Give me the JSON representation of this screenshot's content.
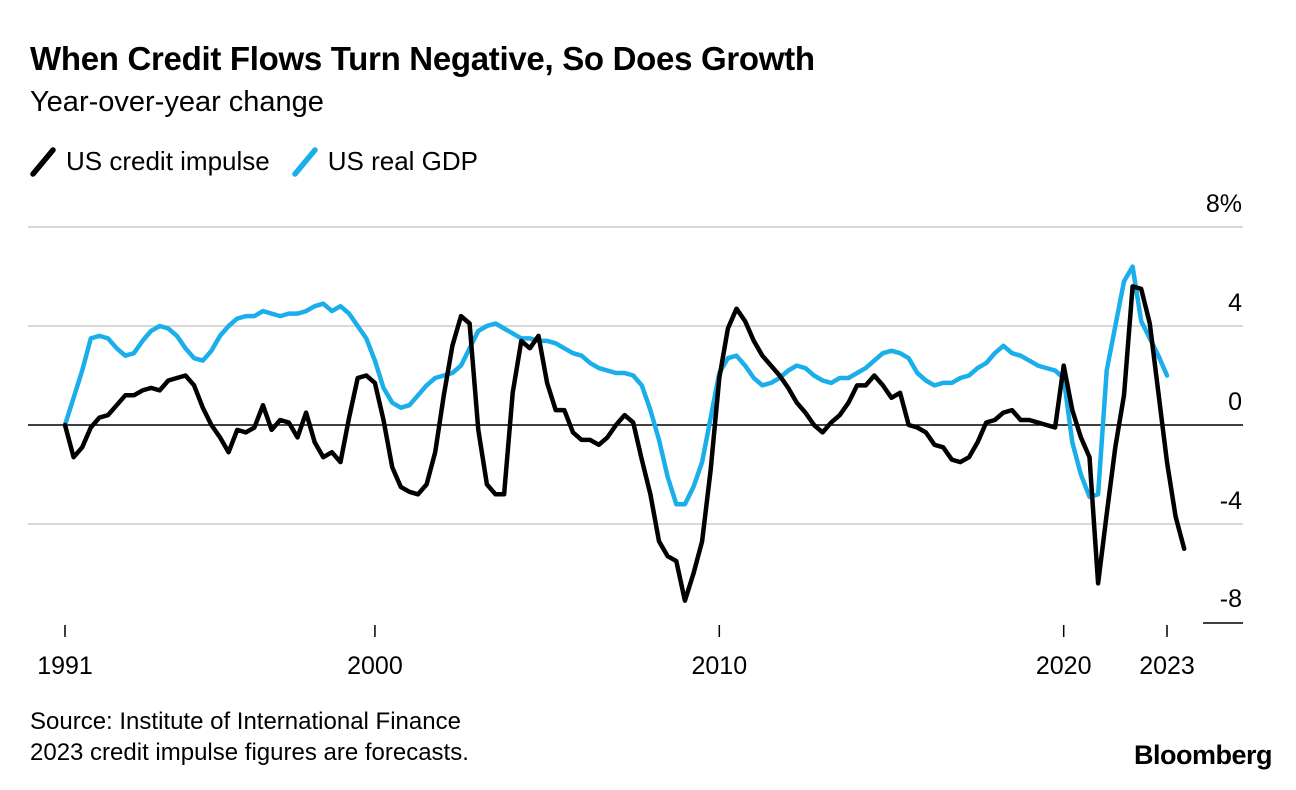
{
  "header": {
    "title": "When Credit Flows Turn Negative, So Does Growth",
    "subtitle": "Year-over-year change"
  },
  "legend": [
    {
      "label": "US credit impulse",
      "color": "#000000"
    },
    {
      "label": "US real GDP",
      "color": "#1aaeeb"
    }
  ],
  "footer": {
    "source": "Source: Institute of International Finance",
    "note": "2023 credit impulse figures are forecasts.",
    "brand": "Bloomberg"
  },
  "chart_data": {
    "type": "line",
    "xlim": [
      1991,
      2023
    ],
    "ylim": [
      -8,
      8
    ],
    "x_ticks": [
      {
        "value": 1991,
        "label": "1991"
      },
      {
        "value": 2000,
        "label": "2000"
      },
      {
        "value": 2010,
        "label": "2010"
      },
      {
        "value": 2020,
        "label": "2020"
      },
      {
        "value": 2023,
        "label": "2023"
      }
    ],
    "y_ticks": [
      {
        "value": 8,
        "label": "8%"
      },
      {
        "value": 4,
        "label": "4"
      },
      {
        "value": 0,
        "label": "0"
      },
      {
        "value": -4,
        "label": "-4"
      },
      {
        "value": -8,
        "label": "-8"
      }
    ],
    "grid": true,
    "legend_position": "top-left",
    "series": [
      {
        "name": "US credit impulse",
        "color": "#000000",
        "points": [
          [
            1991.0,
            0.0
          ],
          [
            1991.25,
            -1.3
          ],
          [
            1991.5,
            -0.9
          ],
          [
            1991.75,
            -0.1
          ],
          [
            1992.0,
            0.3
          ],
          [
            1992.25,
            0.4
          ],
          [
            1992.5,
            0.8
          ],
          [
            1992.75,
            1.2
          ],
          [
            1993.0,
            1.2
          ],
          [
            1993.25,
            1.4
          ],
          [
            1993.5,
            1.5
          ],
          [
            1993.75,
            1.4
          ],
          [
            1994.0,
            1.8
          ],
          [
            1994.25,
            1.9
          ],
          [
            1994.5,
            2.0
          ],
          [
            1994.75,
            1.6
          ],
          [
            1995.0,
            0.7
          ],
          [
            1995.25,
            0.0
          ],
          [
            1995.5,
            -0.5
          ],
          [
            1995.75,
            -1.1
          ],
          [
            1996.0,
            -0.2
          ],
          [
            1996.25,
            -0.3
          ],
          [
            1996.5,
            -0.1
          ],
          [
            1996.75,
            0.8
          ],
          [
            1997.0,
            -0.2
          ],
          [
            1997.25,
            0.2
          ],
          [
            1997.5,
            0.1
          ],
          [
            1997.75,
            -0.5
          ],
          [
            1998.0,
            0.5
          ],
          [
            1998.25,
            -0.7
          ],
          [
            1998.5,
            -1.3
          ],
          [
            1998.75,
            -1.1
          ],
          [
            1999.0,
            -1.5
          ],
          [
            1999.25,
            0.3
          ],
          [
            1999.5,
            1.9
          ],
          [
            1999.75,
            2.0
          ],
          [
            2000.0,
            1.7
          ],
          [
            2000.25,
            0.2
          ],
          [
            2000.5,
            -1.7
          ],
          [
            2000.75,
            -2.5
          ],
          [
            2001.0,
            -2.7
          ],
          [
            2001.25,
            -2.8
          ],
          [
            2001.5,
            -2.4
          ],
          [
            2001.75,
            -1.1
          ],
          [
            2002.0,
            1.2
          ],
          [
            2002.25,
            3.2
          ],
          [
            2002.5,
            4.4
          ],
          [
            2002.75,
            4.1
          ],
          [
            2003.0,
            -0.2
          ],
          [
            2003.25,
            -2.4
          ],
          [
            2003.5,
            -2.8
          ],
          [
            2003.75,
            -2.8
          ],
          [
            2004.0,
            1.3
          ],
          [
            2004.25,
            3.4
          ],
          [
            2004.5,
            3.1
          ],
          [
            2004.75,
            3.6
          ],
          [
            2005.0,
            1.7
          ],
          [
            2005.25,
            0.6
          ],
          [
            2005.5,
            0.6
          ],
          [
            2005.75,
            -0.3
          ],
          [
            2006.0,
            -0.6
          ],
          [
            2006.25,
            -0.6
          ],
          [
            2006.5,
            -0.8
          ],
          [
            2006.75,
            -0.5
          ],
          [
            2007.0,
            0.0
          ],
          [
            2007.25,
            0.4
          ],
          [
            2007.5,
            0.1
          ],
          [
            2007.75,
            -1.4
          ],
          [
            2008.0,
            -2.8
          ],
          [
            2008.25,
            -4.7
          ],
          [
            2008.5,
            -5.3
          ],
          [
            2008.75,
            -5.5
          ],
          [
            2009.0,
            -7.1
          ],
          [
            2009.25,
            -6.0
          ],
          [
            2009.5,
            -4.7
          ],
          [
            2009.75,
            -1.8
          ],
          [
            2010.0,
            1.9
          ],
          [
            2010.25,
            3.9
          ],
          [
            2010.5,
            4.7
          ],
          [
            2010.75,
            4.2
          ],
          [
            2011.0,
            3.4
          ],
          [
            2011.25,
            2.8
          ],
          [
            2011.5,
            2.4
          ],
          [
            2011.75,
            2.0
          ],
          [
            2012.0,
            1.5
          ],
          [
            2012.25,
            0.9
          ],
          [
            2012.5,
            0.5
          ],
          [
            2012.75,
            0.0
          ],
          [
            2013.0,
            -0.3
          ],
          [
            2013.25,
            0.1
          ],
          [
            2013.5,
            0.4
          ],
          [
            2013.75,
            0.9
          ],
          [
            2014.0,
            1.6
          ],
          [
            2014.25,
            1.6
          ],
          [
            2014.5,
            2.0
          ],
          [
            2014.75,
            1.6
          ],
          [
            2015.0,
            1.1
          ],
          [
            2015.25,
            1.3
          ],
          [
            2015.5,
            0.0
          ],
          [
            2015.75,
            -0.1
          ],
          [
            2016.0,
            -0.3
          ],
          [
            2016.25,
            -0.8
          ],
          [
            2016.5,
            -0.9
          ],
          [
            2016.75,
            -1.4
          ],
          [
            2017.0,
            -1.5
          ],
          [
            2017.25,
            -1.3
          ],
          [
            2017.5,
            -0.7
          ],
          [
            2017.75,
            0.1
          ],
          [
            2018.0,
            0.2
          ],
          [
            2018.25,
            0.5
          ],
          [
            2018.5,
            0.6
          ],
          [
            2018.75,
            0.2
          ],
          [
            2019.0,
            0.2
          ],
          [
            2019.25,
            0.1
          ],
          [
            2019.5,
            0.0
          ],
          [
            2019.75,
            -0.1
          ],
          [
            2020.0,
            2.4
          ],
          [
            2020.25,
            0.6
          ],
          [
            2020.5,
            -0.5
          ],
          [
            2020.75,
            -1.3
          ],
          [
            2021.0,
            -6.4
          ],
          [
            2021.25,
            -3.6
          ],
          [
            2021.5,
            -0.9
          ],
          [
            2021.75,
            1.2
          ],
          [
            2022.0,
            5.6
          ],
          [
            2022.25,
            5.5
          ],
          [
            2022.5,
            4.1
          ],
          [
            2022.75,
            1.3
          ],
          [
            2023.0,
            -1.5
          ],
          [
            2023.25,
            -3.7
          ],
          [
            2023.5,
            -5.0
          ]
        ]
      },
      {
        "name": "US real GDP",
        "color": "#1aaeeb",
        "points": [
          [
            1991.0,
            0.0
          ],
          [
            1991.25,
            1.1
          ],
          [
            1991.5,
            2.2
          ],
          [
            1991.75,
            3.5
          ],
          [
            1992.0,
            3.6
          ],
          [
            1992.25,
            3.5
          ],
          [
            1992.5,
            3.1
          ],
          [
            1992.75,
            2.8
          ],
          [
            1993.0,
            2.9
          ],
          [
            1993.25,
            3.4
          ],
          [
            1993.5,
            3.8
          ],
          [
            1993.75,
            4.0
          ],
          [
            1994.0,
            3.9
          ],
          [
            1994.25,
            3.6
          ],
          [
            1994.5,
            3.1
          ],
          [
            1994.75,
            2.7
          ],
          [
            1995.0,
            2.6
          ],
          [
            1995.25,
            3.0
          ],
          [
            1995.5,
            3.6
          ],
          [
            1995.75,
            4.0
          ],
          [
            1996.0,
            4.3
          ],
          [
            1996.25,
            4.4
          ],
          [
            1996.5,
            4.4
          ],
          [
            1996.75,
            4.6
          ],
          [
            1997.0,
            4.5
          ],
          [
            1997.25,
            4.4
          ],
          [
            1997.5,
            4.5
          ],
          [
            1997.75,
            4.5
          ],
          [
            1998.0,
            4.6
          ],
          [
            1998.25,
            4.8
          ],
          [
            1998.5,
            4.9
          ],
          [
            1998.75,
            4.6
          ],
          [
            1999.0,
            4.8
          ],
          [
            1999.25,
            4.5
          ],
          [
            1999.5,
            4.0
          ],
          [
            1999.75,
            3.5
          ],
          [
            2000.0,
            2.6
          ],
          [
            2000.25,
            1.5
          ],
          [
            2000.5,
            0.9
          ],
          [
            2000.75,
            0.7
          ],
          [
            2001.0,
            0.8
          ],
          [
            2001.25,
            1.2
          ],
          [
            2001.5,
            1.6
          ],
          [
            2001.75,
            1.9
          ],
          [
            2002.0,
            2.0
          ],
          [
            2002.25,
            2.1
          ],
          [
            2002.5,
            2.4
          ],
          [
            2002.75,
            3.1
          ],
          [
            2003.0,
            3.8
          ],
          [
            2003.25,
            4.0
          ],
          [
            2003.5,
            4.1
          ],
          [
            2003.75,
            3.9
          ],
          [
            2004.0,
            3.7
          ],
          [
            2004.25,
            3.5
          ],
          [
            2004.5,
            3.5
          ],
          [
            2004.75,
            3.4
          ],
          [
            2005.0,
            3.4
          ],
          [
            2005.25,
            3.3
          ],
          [
            2005.5,
            3.1
          ],
          [
            2005.75,
            2.9
          ],
          [
            2006.0,
            2.8
          ],
          [
            2006.25,
            2.5
          ],
          [
            2006.5,
            2.3
          ],
          [
            2006.75,
            2.2
          ],
          [
            2007.0,
            2.1
          ],
          [
            2007.25,
            2.1
          ],
          [
            2007.5,
            2.0
          ],
          [
            2007.75,
            1.6
          ],
          [
            2008.0,
            0.6
          ],
          [
            2008.25,
            -0.6
          ],
          [
            2008.5,
            -2.1
          ],
          [
            2008.75,
            -3.2
          ],
          [
            2009.0,
            -3.2
          ],
          [
            2009.25,
            -2.5
          ],
          [
            2009.5,
            -1.5
          ],
          [
            2009.75,
            0.3
          ],
          [
            2010.0,
            2.1
          ],
          [
            2010.25,
            2.7
          ],
          [
            2010.5,
            2.8
          ],
          [
            2010.75,
            2.4
          ],
          [
            2011.0,
            1.9
          ],
          [
            2011.25,
            1.6
          ],
          [
            2011.5,
            1.7
          ],
          [
            2011.75,
            1.9
          ],
          [
            2012.0,
            2.2
          ],
          [
            2012.25,
            2.4
          ],
          [
            2012.5,
            2.3
          ],
          [
            2012.75,
            2.0
          ],
          [
            2013.0,
            1.8
          ],
          [
            2013.25,
            1.7
          ],
          [
            2013.5,
            1.9
          ],
          [
            2013.75,
            1.9
          ],
          [
            2014.0,
            2.1
          ],
          [
            2014.25,
            2.3
          ],
          [
            2014.5,
            2.6
          ],
          [
            2014.75,
            2.9
          ],
          [
            2015.0,
            3.0
          ],
          [
            2015.25,
            2.9
          ],
          [
            2015.5,
            2.7
          ],
          [
            2015.75,
            2.1
          ],
          [
            2016.0,
            1.8
          ],
          [
            2016.25,
            1.6
          ],
          [
            2016.5,
            1.7
          ],
          [
            2016.75,
            1.7
          ],
          [
            2017.0,
            1.9
          ],
          [
            2017.25,
            2.0
          ],
          [
            2017.5,
            2.3
          ],
          [
            2017.75,
            2.5
          ],
          [
            2018.0,
            2.9
          ],
          [
            2018.25,
            3.2
          ],
          [
            2018.5,
            2.9
          ],
          [
            2018.75,
            2.8
          ],
          [
            2019.0,
            2.6
          ],
          [
            2019.25,
            2.4
          ],
          [
            2019.5,
            2.3
          ],
          [
            2019.75,
            2.2
          ],
          [
            2020.0,
            1.9
          ],
          [
            2020.25,
            -0.7
          ],
          [
            2020.5,
            -2.0
          ],
          [
            2020.75,
            -2.9
          ],
          [
            2021.0,
            -2.8
          ],
          [
            2021.25,
            2.2
          ],
          [
            2021.5,
            4.0
          ],
          [
            2021.75,
            5.8
          ],
          [
            2022.0,
            6.4
          ],
          [
            2022.25,
            4.2
          ],
          [
            2022.5,
            3.5
          ],
          [
            2022.75,
            2.8
          ],
          [
            2023.0,
            2.0
          ]
        ]
      }
    ]
  }
}
